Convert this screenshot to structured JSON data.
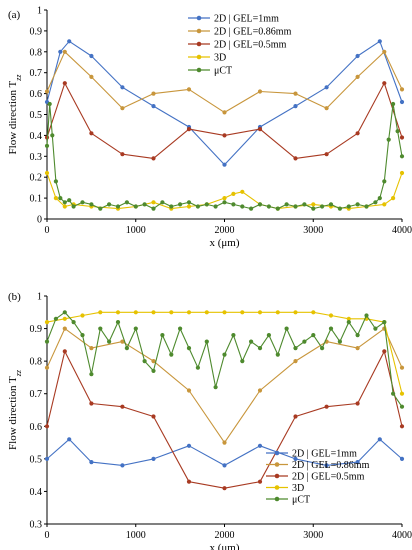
{
  "chart_data": [
    {
      "type": "line",
      "panel_label": "(a)",
      "xlabel": "x (μm)",
      "ylabel": "Flow direction T",
      "ylabel_sub": "zz",
      "xlim": [
        0,
        4000
      ],
      "ylim": [
        0,
        1
      ],
      "xticks": [
        0,
        1000,
        2000,
        3000,
        4000
      ],
      "yticks": [
        0,
        0.1,
        0.2,
        0.3,
        0.4,
        0.5,
        0.6,
        0.7,
        0.8,
        0.9,
        1
      ],
      "legend_position": "top-center",
      "series": [
        {
          "name": "2D | GEL=1mm",
          "color": "#4472c4",
          "x": [
            0,
            150,
            250,
            500,
            850,
            1200,
            1600,
            2000,
            2400,
            2800,
            3150,
            3500,
            3750,
            4000
          ],
          "y": [
            0.56,
            0.8,
            0.85,
            0.78,
            0.63,
            0.54,
            0.44,
            0.26,
            0.44,
            0.54,
            0.63,
            0.78,
            0.85,
            0.56
          ]
        },
        {
          "name": "2D | GEL=0.86mm",
          "color": "#c8963c",
          "x": [
            0,
            200,
            500,
            850,
            1200,
            1600,
            2000,
            2400,
            2800,
            3150,
            3500,
            3800,
            4000
          ],
          "y": [
            0.61,
            0.8,
            0.68,
            0.53,
            0.6,
            0.62,
            0.51,
            0.61,
            0.6,
            0.53,
            0.68,
            0.8,
            0.62
          ]
        },
        {
          "name": "2D | GEL=0.5mm",
          "color": "#a83a22",
          "x": [
            0,
            200,
            500,
            850,
            1200,
            1600,
            2000,
            2400,
            2800,
            3150,
            3500,
            3800,
            4000
          ],
          "y": [
            0.39,
            0.65,
            0.41,
            0.31,
            0.29,
            0.43,
            0.4,
            0.43,
            0.29,
            0.31,
            0.41,
            0.65,
            0.39
          ]
        },
        {
          "name": "3D",
          "color": "#e6c200",
          "x": [
            0,
            100,
            200,
            300,
            500,
            800,
            1000,
            1200,
            1400,
            1600,
            1800,
            2000,
            2100,
            2200,
            2400,
            2600,
            2800,
            3000,
            3200,
            3400,
            3600,
            3800,
            3900,
            4000
          ],
          "y": [
            0.22,
            0.1,
            0.06,
            0.07,
            0.06,
            0.05,
            0.06,
            0.08,
            0.05,
            0.06,
            0.07,
            0.1,
            0.12,
            0.13,
            0.07,
            0.05,
            0.06,
            0.07,
            0.06,
            0.05,
            0.06,
            0.07,
            0.1,
            0.22
          ]
        },
        {
          "name": "μCT",
          "color": "#4e8a2e",
          "x": [
            0,
            30,
            60,
            100,
            150,
            200,
            250,
            300,
            400,
            500,
            600,
            700,
            800,
            900,
            1000,
            1100,
            1200,
            1300,
            1400,
            1500,
            1600,
            1700,
            1800,
            1900,
            2000,
            2100,
            2200,
            2300,
            2400,
            2500,
            2600,
            2700,
            2800,
            2900,
            3000,
            3100,
            3200,
            3300,
            3400,
            3500,
            3600,
            3700,
            3750,
            3800,
            3850,
            3900,
            3950,
            4000
          ],
          "y": [
            0.35,
            0.55,
            0.4,
            0.18,
            0.1,
            0.08,
            0.09,
            0.06,
            0.08,
            0.07,
            0.05,
            0.07,
            0.06,
            0.08,
            0.06,
            0.07,
            0.05,
            0.08,
            0.06,
            0.07,
            0.08,
            0.06,
            0.07,
            0.06,
            0.08,
            0.07,
            0.06,
            0.05,
            0.07,
            0.06,
            0.05,
            0.07,
            0.06,
            0.07,
            0.05,
            0.06,
            0.07,
            0.05,
            0.06,
            0.07,
            0.06,
            0.08,
            0.1,
            0.18,
            0.38,
            0.55,
            0.42,
            0.3
          ]
        }
      ]
    },
    {
      "type": "line",
      "panel_label": "(b)",
      "xlabel": "x (μm)",
      "ylabel": "Flow direction T",
      "ylabel_sub": "zz",
      "xlim": [
        0,
        4000
      ],
      "ylim": [
        0.3,
        1
      ],
      "xticks": [
        0,
        1000,
        2000,
        3000,
        4000
      ],
      "yticks": [
        0.3,
        0.4,
        0.5,
        0.6,
        0.7,
        0.8,
        0.9,
        1
      ],
      "legend_position": "bottom-right",
      "series": [
        {
          "name": "2D | GEL=1mm",
          "color": "#4472c4",
          "x": [
            0,
            250,
            500,
            850,
            1200,
            1600,
            2000,
            2400,
            2800,
            3150,
            3500,
            3750,
            4000
          ],
          "y": [
            0.5,
            0.56,
            0.49,
            0.48,
            0.5,
            0.54,
            0.48,
            0.54,
            0.5,
            0.48,
            0.49,
            0.56,
            0.5
          ]
        },
        {
          "name": "2D | GEL=0.86mm",
          "color": "#c8963c",
          "x": [
            0,
            200,
            500,
            850,
            1200,
            1600,
            2000,
            2400,
            2800,
            3150,
            3500,
            3800,
            4000
          ],
          "y": [
            0.78,
            0.9,
            0.84,
            0.86,
            0.8,
            0.71,
            0.55,
            0.71,
            0.8,
            0.86,
            0.84,
            0.9,
            0.78
          ]
        },
        {
          "name": "2D | GEL=0.5mm",
          "color": "#a83a22",
          "x": [
            0,
            200,
            500,
            850,
            1200,
            1600,
            2000,
            2400,
            2800,
            3150,
            3500,
            3800,
            4000
          ],
          "y": [
            0.6,
            0.83,
            0.67,
            0.66,
            0.63,
            0.43,
            0.41,
            0.43,
            0.63,
            0.66,
            0.67,
            0.83,
            0.6
          ]
        },
        {
          "name": "3D",
          "color": "#e6c200",
          "x": [
            0,
            200,
            400,
            600,
            800,
            1000,
            1200,
            1400,
            1600,
            1800,
            2000,
            2200,
            2400,
            2600,
            2800,
            3000,
            3200,
            3400,
            3600,
            3800,
            4000
          ],
          "y": [
            0.92,
            0.93,
            0.94,
            0.95,
            0.95,
            0.95,
            0.95,
            0.95,
            0.95,
            0.95,
            0.95,
            0.95,
            0.95,
            0.95,
            0.95,
            0.95,
            0.94,
            0.93,
            0.93,
            0.92,
            0.7
          ]
        },
        {
          "name": "μCT",
          "color": "#4e8a2e",
          "x": [
            0,
            100,
            200,
            300,
            400,
            500,
            600,
            700,
            800,
            900,
            1000,
            1100,
            1200,
            1300,
            1400,
            1500,
            1600,
            1700,
            1800,
            1900,
            2000,
            2100,
            2200,
            2300,
            2400,
            2500,
            2600,
            2700,
            2800,
            2900,
            3000,
            3100,
            3200,
            3300,
            3400,
            3500,
            3600,
            3700,
            3800,
            3900,
            4000
          ],
          "y": [
            0.86,
            0.93,
            0.95,
            0.92,
            0.88,
            0.76,
            0.9,
            0.86,
            0.92,
            0.84,
            0.9,
            0.8,
            0.77,
            0.88,
            0.82,
            0.9,
            0.84,
            0.78,
            0.86,
            0.72,
            0.82,
            0.88,
            0.8,
            0.86,
            0.84,
            0.88,
            0.82,
            0.9,
            0.84,
            0.86,
            0.88,
            0.84,
            0.9,
            0.86,
            0.92,
            0.88,
            0.94,
            0.9,
            0.92,
            0.7,
            0.66
          ]
        }
      ]
    }
  ]
}
